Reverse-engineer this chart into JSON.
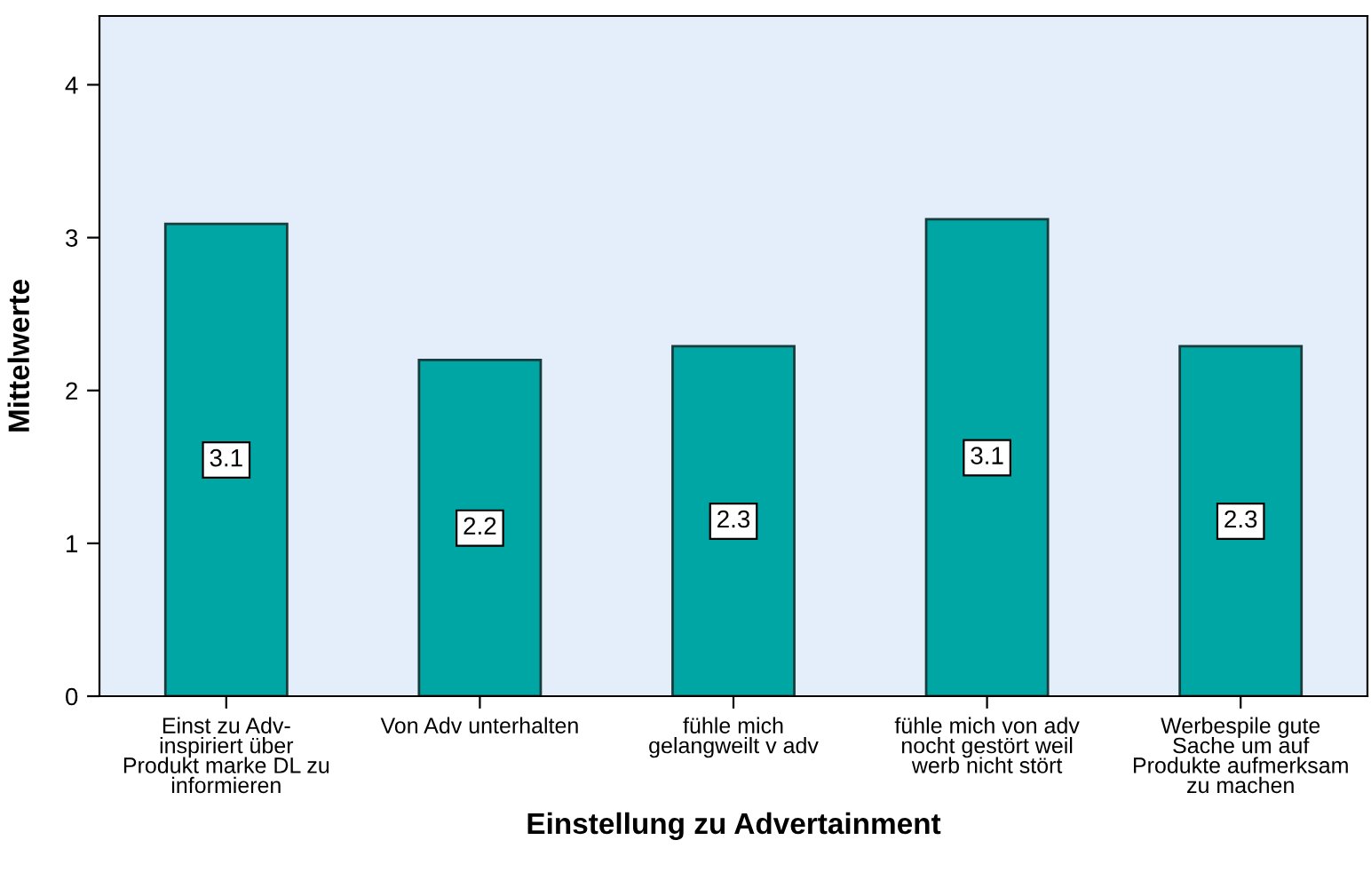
{
  "chart_data": {
    "type": "bar",
    "xlabel": "Einstellung zu Advertainment",
    "ylabel": "Mittelwerte",
    "categories": [
      "Einst zu Adv-\ninspiriert über\nProdukt marke DL zu\ninformieren",
      "Von Adv unterhalten",
      "fühle mich\ngelangweilt v adv",
      "fühle mich von adv\nnocht gestört weil\nwerb nicht stört",
      "Werbespile gute\nSache um auf\nProdukte aufmerksam\nzu machen"
    ],
    "values": [
      3.09,
      2.2,
      2.29,
      3.12,
      2.29
    ],
    "value_labels": [
      "3.1",
      "2.2",
      "2.3",
      "3.1",
      "2.3"
    ],
    "color": "#00a6a3",
    "ylim": [
      0,
      4.45
    ],
    "yticks": [
      0,
      1,
      2,
      3,
      4
    ],
    "grid": false,
    "legend": false
  }
}
